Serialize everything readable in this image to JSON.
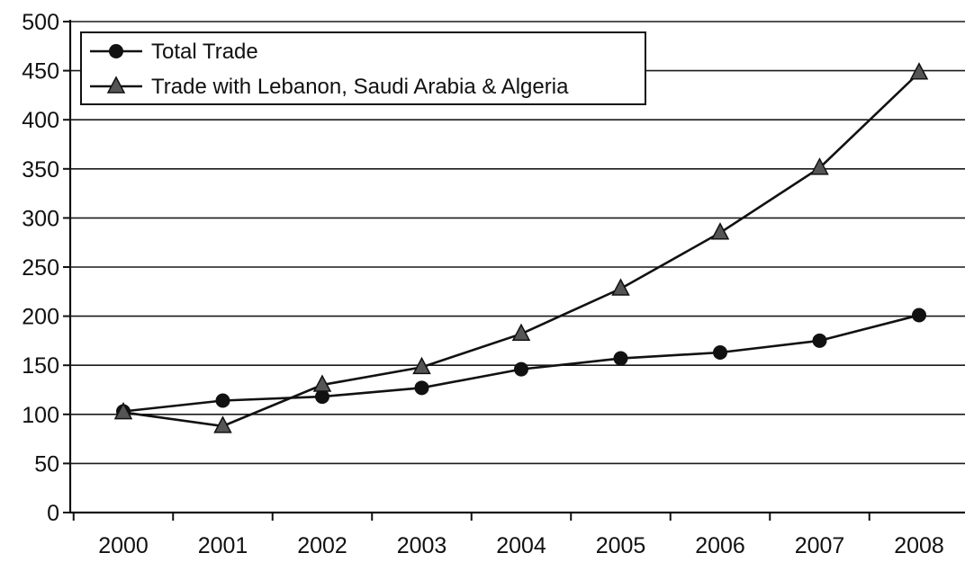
{
  "chart_data": {
    "type": "line",
    "title": "",
    "xlabel": "",
    "ylabel": "",
    "categories": [
      "2000",
      "2001",
      "2002",
      "2003",
      "2004",
      "2005",
      "2006",
      "2007",
      "2008"
    ],
    "y_ticks": [
      "0",
      "50",
      "100",
      "150",
      "200",
      "250",
      "300",
      "350",
      "400",
      "450",
      "500"
    ],
    "ylim": [
      0,
      500
    ],
    "grid": true,
    "legend_position": "top-left",
    "series": [
      {
        "name": "Total Trade",
        "marker": "circle",
        "values": [
          103,
          114,
          118,
          127,
          146,
          157,
          163,
          175,
          201
        ]
      },
      {
        "name": "Trade with Lebanon, Saudi Arabia & Algeria",
        "marker": "triangle",
        "values": [
          102,
          88,
          130,
          148,
          182,
          228,
          285,
          351,
          448
        ]
      }
    ]
  }
}
